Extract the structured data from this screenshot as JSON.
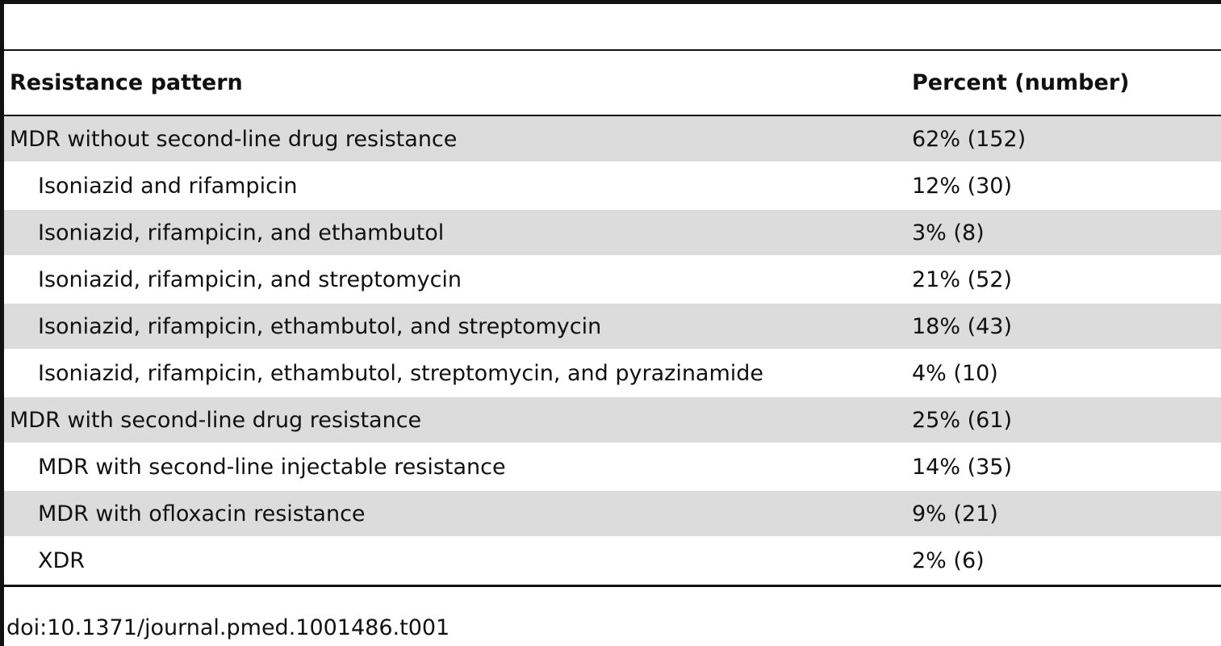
{
  "table": {
    "headers": {
      "pattern": "Resistance pattern",
      "percent": "Percent (number)"
    },
    "rows": [
      {
        "pattern": "MDR without second-line drug resistance",
        "percent": "62% (152)",
        "indent": false,
        "shaded": true
      },
      {
        "pattern": "Isoniazid and rifampicin",
        "percent": "12% (30)",
        "indent": true,
        "shaded": false
      },
      {
        "pattern": "Isoniazid, rifampicin, and ethambutol",
        "percent": "3% (8)",
        "indent": true,
        "shaded": true
      },
      {
        "pattern": "Isoniazid, rifampicin, and streptomycin",
        "percent": "21% (52)",
        "indent": true,
        "shaded": false
      },
      {
        "pattern": "Isoniazid, rifampicin, ethambutol, and streptomycin",
        "percent": "18% (43)",
        "indent": true,
        "shaded": true
      },
      {
        "pattern": "Isoniazid, rifampicin, ethambutol, streptomycin, and pyrazinamide",
        "percent": "4% (10)",
        "indent": true,
        "shaded": false
      },
      {
        "pattern": "MDR with second-line drug resistance",
        "percent": "25% (61)",
        "indent": false,
        "shaded": true
      },
      {
        "pattern": "MDR with second-line injectable resistance",
        "percent": "14% (35)",
        "indent": true,
        "shaded": false
      },
      {
        "pattern": "MDR with ofloxacin resistance",
        "percent": "9% (21)",
        "indent": true,
        "shaded": true
      },
      {
        "pattern": "XDR",
        "percent": "2% (6)",
        "indent": true,
        "shaded": false
      }
    ]
  },
  "doi": "doi:10.1371/journal.pmed.1001486.t001",
  "colors": {
    "rule": "#111111",
    "shade": "#dcdcdc"
  }
}
